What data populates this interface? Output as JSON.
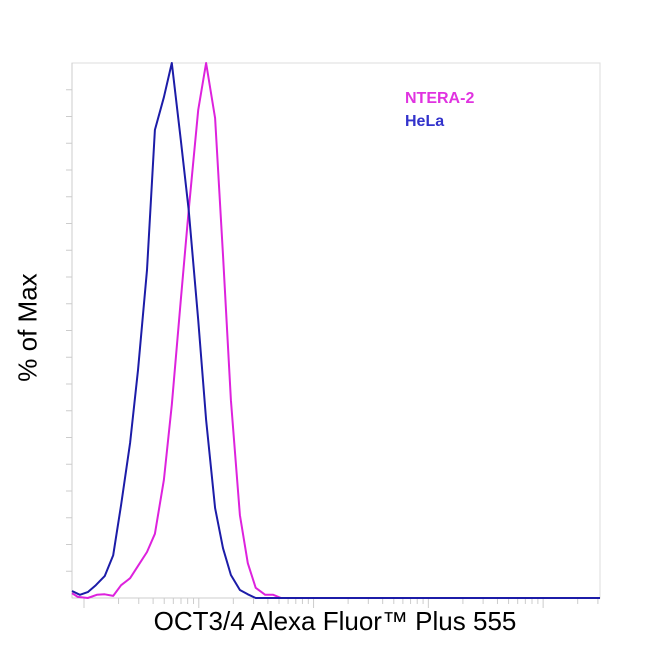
{
  "chart_data": {
    "type": "line",
    "title": "",
    "xlabel": "OCT3/4 Alexa Fluor™ Plus 555",
    "ylabel": "% of Max",
    "xlim": [
      0,
      1000
    ],
    "ylim": [
      0,
      100
    ],
    "x_scale_note": "log fluorescence channel (relative units), no tick labels shown",
    "grid": false,
    "legend_position": "top-right",
    "series": [
      {
        "name": "NTERA-2",
        "color": "#dd22dd",
        "x": [
          0,
          11,
          30,
          47,
          62,
          78,
          93,
          110,
          125,
          142,
          157,
          174,
          189,
          206,
          221,
          239,
          254,
          271,
          286,
          301,
          318,
          333,
          348,
          366,
          381,
          396,
          1000
        ],
        "y": [
          0.9,
          0.2,
          0,
          0.6,
          0.7,
          0.4,
          2.4,
          3.7,
          6.0,
          8.6,
          12.0,
          22.1,
          36.1,
          55.7,
          72.5,
          91.2,
          100,
          89.7,
          64.1,
          37.0,
          15.5,
          6.5,
          1.9,
          0.6,
          0.6,
          0,
          0
        ]
      },
      {
        "name": "HeLa",
        "color": "#1c1ca8",
        "x": [
          0,
          15,
          30,
          45,
          62,
          78,
          93,
          110,
          125,
          142,
          157,
          174,
          189,
          206,
          221,
          239,
          254,
          271,
          286,
          301,
          318,
          333,
          348,
          1000
        ],
        "y": [
          1.3,
          0.6,
          1.1,
          2.4,
          4.1,
          8.0,
          17.4,
          29.0,
          42.6,
          61.3,
          87.5,
          93.6,
          100,
          85.6,
          72.5,
          52.0,
          33.3,
          16.8,
          9.3,
          4.3,
          1.5,
          0.7,
          0,
          0
        ]
      }
    ],
    "legend": [
      {
        "label": "NTERA-2",
        "color": "#e033e0"
      },
      {
        "label": "HeLa",
        "color": "#3333cc"
      }
    ]
  }
}
